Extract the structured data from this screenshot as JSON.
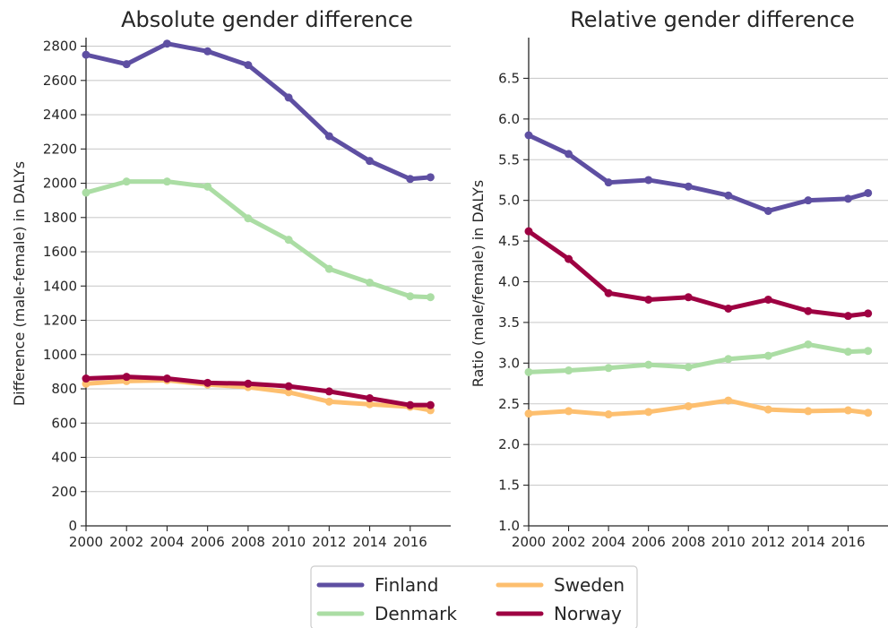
{
  "chart_data": [
    {
      "type": "line",
      "title": "Absolute gender difference",
      "xlabel": "",
      "ylabel": "Difference (male-female) in DALYs",
      "xlim": [
        2000,
        2018
      ],
      "ylim": [
        0,
        2850
      ],
      "xticks": [
        "2000",
        "2002",
        "2004",
        "2006",
        "2008",
        "2010",
        "2012",
        "2014",
        "2016"
      ],
      "yticks": [
        "0",
        "200",
        "400",
        "600",
        "800",
        "1000",
        "1200",
        "1400",
        "1600",
        "1800",
        "2000",
        "2200",
        "2400",
        "2600",
        "2800"
      ],
      "grid": "horizontal",
      "x": [
        2000,
        2002,
        2004,
        2006,
        2008,
        2010,
        2012,
        2014,
        2016,
        2017
      ],
      "series": [
        {
          "name": "Finland",
          "color": "#5e4fa2",
          "values": [
            2750,
            2695,
            2815,
            2770,
            2690,
            2500,
            2275,
            2130,
            2025,
            2035
          ]
        },
        {
          "name": "Denmark",
          "color": "#abdda4",
          "values": [
            1945,
            2010,
            2010,
            1980,
            1795,
            1670,
            1500,
            1420,
            1340,
            1335
          ]
        },
        {
          "name": "Sweden",
          "color": "#fdbf6f",
          "values": [
            830,
            845,
            850,
            825,
            810,
            780,
            725,
            710,
            695,
            675
          ]
        },
        {
          "name": "Norway",
          "color": "#9e0142",
          "values": [
            860,
            870,
            860,
            835,
            830,
            815,
            785,
            745,
            705,
            705
          ]
        }
      ]
    },
    {
      "type": "line",
      "title": "Relative gender difference",
      "xlabel": "",
      "ylabel": "Ratio (male/female) in DALYs",
      "xlim": [
        2000,
        2018
      ],
      "ylim": [
        1.0,
        7.0
      ],
      "xticks": [
        "2000",
        "2002",
        "2004",
        "2006",
        "2008",
        "2010",
        "2012",
        "2014",
        "2016"
      ],
      "yticks": [
        "1.0",
        "1.5",
        "2.0",
        "2.5",
        "3.0",
        "3.5",
        "4.0",
        "4.5",
        "5.0",
        "5.5",
        "6.0",
        "6.5"
      ],
      "grid": "horizontal",
      "x": [
        2000,
        2002,
        2004,
        2006,
        2008,
        2010,
        2012,
        2014,
        2016,
        2017
      ],
      "series": [
        {
          "name": "Finland",
          "color": "#5e4fa2",
          "values": [
            5.8,
            5.57,
            5.22,
            5.25,
            5.17,
            5.06,
            4.87,
            5.0,
            5.02,
            5.09
          ]
        },
        {
          "name": "Denmark",
          "color": "#abdda4",
          "values": [
            2.89,
            2.91,
            2.94,
            2.98,
            2.95,
            3.05,
            3.09,
            3.23,
            3.14,
            3.15
          ]
        },
        {
          "name": "Sweden",
          "color": "#fdbf6f",
          "values": [
            2.38,
            2.41,
            2.37,
            2.4,
            2.47,
            2.54,
            2.43,
            2.41,
            2.42,
            2.39
          ]
        },
        {
          "name": "Norway",
          "color": "#9e0142",
          "values": [
            4.62,
            4.28,
            3.86,
            3.78,
            3.81,
            3.67,
            3.78,
            3.64,
            3.58,
            3.61
          ]
        }
      ]
    }
  ],
  "legend": {
    "placement": "bottom-center",
    "entries": [
      {
        "label": "Finland",
        "color": "#5e4fa2"
      },
      {
        "label": "Sweden",
        "color": "#fdbf6f"
      },
      {
        "label": "Denmark",
        "color": "#abdda4"
      },
      {
        "label": "Norway",
        "color": "#9e0142"
      }
    ]
  }
}
